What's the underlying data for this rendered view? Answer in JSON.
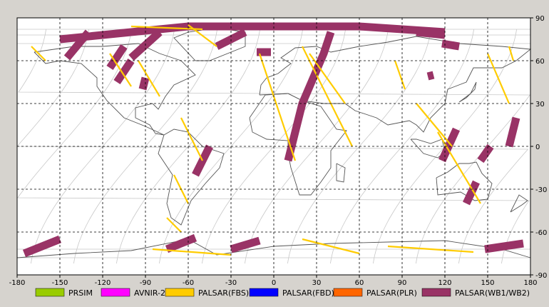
{
  "map": {
    "lon_range": [
      -180,
      180
    ],
    "lat_range": [
      -90,
      90
    ],
    "lon_ticks": [
      "-180",
      "-150",
      "-120",
      "-90",
      "-60",
      "-30",
      "0",
      "30",
      "60",
      "90",
      "120",
      "150",
      "180"
    ],
    "lat_ticks": [
      "90",
      "60",
      "30",
      "0",
      "-30",
      "-60",
      "-90"
    ],
    "grid": "dashed",
    "colors": {
      "background": "#ffffff",
      "coastline": "#555555",
      "orbit_track": "#c8c8c8",
      "grid": "#000000"
    }
  },
  "legend": [
    {
      "label": "PRSIM",
      "color": "#99cc00"
    },
    {
      "label": "AVNIR-2",
      "color": "#ff00ff"
    },
    {
      "label": "PALSAR(FBS)",
      "color": "#ffcc00"
    },
    {
      "label": "PALSAR(FBD)",
      "color": "#0000ff"
    },
    {
      "label": "PALSAR(PLR)",
      "color": "#ff6600"
    },
    {
      "label": "PALSAR(WB1/WB2)",
      "color": "#993366"
    }
  ],
  "swaths": [
    {
      "mode": "PALSAR(WB1/WB2)",
      "path": [
        [
          -150,
          75
        ],
        [
          -60,
          84
        ],
        [
          60,
          84
        ],
        [
          120,
          80
        ]
      ]
    },
    {
      "mode": "PALSAR(WB1/WB2)",
      "path": [
        [
          -145,
          62
        ],
        [
          -130,
          80
        ]
      ]
    },
    {
      "mode": "PALSAR(WB1/WB2)",
      "path": [
        [
          -100,
          62
        ],
        [
          -80,
          80
        ]
      ]
    },
    {
      "mode": "PALSAR(WB1/WB2)",
      "path": [
        [
          -115,
          55
        ],
        [
          -105,
          70
        ]
      ]
    },
    {
      "mode": "PALSAR(WB1/WB2)",
      "path": [
        [
          -110,
          45
        ],
        [
          -100,
          60
        ]
      ]
    },
    {
      "mode": "PALSAR(WB1/WB2)",
      "path": [
        [
          -40,
          70
        ],
        [
          -20,
          80
        ]
      ]
    },
    {
      "mode": "PALSAR(WB1/WB2)",
      "path": [
        [
          10,
          -10
        ],
        [
          20,
          30
        ],
        [
          35,
          65
        ],
        [
          40,
          80
        ]
      ]
    },
    {
      "mode": "PALSAR(WB1/WB2)",
      "path": [
        [
          -92,
          40
        ],
        [
          -90,
          48
        ]
      ]
    },
    {
      "mode": "PALSAR(WB1/WB2)",
      "path": [
        [
          -55,
          -20
        ],
        [
          -45,
          0
        ]
      ]
    },
    {
      "mode": "PALSAR(WB1/WB2)",
      "path": [
        [
          -12,
          66
        ],
        [
          -2,
          66
        ]
      ]
    },
    {
      "mode": "PALSAR(WB1/WB2)",
      "path": [
        [
          100,
          80
        ],
        [
          120,
          78
        ]
      ]
    },
    {
      "mode": "PALSAR(WB1/WB2)",
      "path": [
        [
          118,
          72
        ],
        [
          130,
          70
        ]
      ]
    },
    {
      "mode": "PALSAR(WB1/WB2)",
      "path": [
        [
          108,
          49
        ],
        [
          112,
          50
        ]
      ]
    },
    {
      "mode": "PALSAR(WB1/WB2)",
      "path": [
        [
          118,
          -10
        ],
        [
          128,
          12
        ]
      ]
    },
    {
      "mode": "PALSAR(WB1/WB2)",
      "path": [
        [
          145,
          -10
        ],
        [
          152,
          0
        ]
      ]
    },
    {
      "mode": "PALSAR(WB1/WB2)",
      "path": [
        [
          135,
          -40
        ],
        [
          142,
          -25
        ]
      ]
    },
    {
      "mode": "PALSAR(WB1/WB2)",
      "path": [
        [
          165,
          0
        ],
        [
          170,
          20
        ]
      ]
    },
    {
      "mode": "PALSAR(WB1/WB2)",
      "path": [
        [
          -175,
          -75
        ],
        [
          -150,
          -65
        ]
      ]
    },
    {
      "mode": "PALSAR(WB1/WB2)",
      "path": [
        [
          -75,
          -72
        ],
        [
          -55,
          -64
        ]
      ]
    },
    {
      "mode": "PALSAR(WB1/WB2)",
      "path": [
        [
          -30,
          -72
        ],
        [
          -10,
          -66
        ]
      ]
    },
    {
      "mode": "PALSAR(WB1/WB2)",
      "path": [
        [
          148,
          -72
        ],
        [
          175,
          -68
        ]
      ]
    },
    {
      "mode": "PALSAR(FBS)",
      "path": [
        [
          -170,
          70
        ],
        [
          -160,
          60
        ]
      ]
    },
    {
      "mode": "PALSAR(FBS)",
      "path": [
        [
          -115,
          65
        ],
        [
          -100,
          42
        ]
      ]
    },
    {
      "mode": "PALSAR(FBS)",
      "path": [
        [
          -95,
          60
        ],
        [
          -80,
          35
        ]
      ]
    },
    {
      "mode": "PALSAR(FBS)",
      "path": [
        [
          -65,
          20
        ],
        [
          -50,
          -10
        ]
      ]
    },
    {
      "mode": "PALSAR(FBS)",
      "path": [
        [
          -70,
          -20
        ],
        [
          -60,
          -40
        ]
      ]
    },
    {
      "mode": "PALSAR(FBS)",
      "path": [
        [
          -75,
          -50
        ],
        [
          -65,
          -60
        ]
      ]
    },
    {
      "mode": "PALSAR(FBS)",
      "path": [
        [
          -60,
          85
        ],
        [
          -40,
          70
        ]
      ]
    },
    {
      "mode": "PALSAR(FBS)",
      "path": [
        [
          -10,
          65
        ],
        [
          15,
          -10
        ]
      ]
    },
    {
      "mode": "PALSAR(FBS)",
      "path": [
        [
          20,
          70
        ],
        [
          55,
          0
        ]
      ]
    },
    {
      "mode": "PALSAR(FBS)",
      "path": [
        [
          25,
          65
        ],
        [
          50,
          30
        ]
      ]
    },
    {
      "mode": "PALSAR(FBS)",
      "path": [
        [
          85,
          60
        ],
        [
          92,
          40
        ]
      ]
    },
    {
      "mode": "PALSAR(FBS)",
      "path": [
        [
          100,
          30
        ],
        [
          125,
          0
        ]
      ]
    },
    {
      "mode": "PALSAR(FBS)",
      "path": [
        [
          115,
          10
        ],
        [
          145,
          -40
        ]
      ]
    },
    {
      "mode": "PALSAR(FBS)",
      "path": [
        [
          150,
          65
        ],
        [
          165,
          30
        ]
      ]
    },
    {
      "mode": "PALSAR(FBS)",
      "path": [
        [
          165,
          70
        ],
        [
          168,
          60
        ]
      ]
    },
    {
      "mode": "PALSAR(FBS)",
      "path": [
        [
          -85,
          -72
        ],
        [
          -30,
          -76
        ]
      ]
    },
    {
      "mode": "PALSAR(FBS)",
      "path": [
        [
          20,
          -65
        ],
        [
          60,
          -75
        ]
      ]
    },
    {
      "mode": "PALSAR(FBS)",
      "path": [
        [
          80,
          -70
        ],
        [
          140,
          -74
        ]
      ]
    },
    {
      "mode": "PALSAR(FBS)",
      "path": [
        [
          -100,
          84
        ],
        [
          -50,
          82
        ]
      ]
    }
  ]
}
